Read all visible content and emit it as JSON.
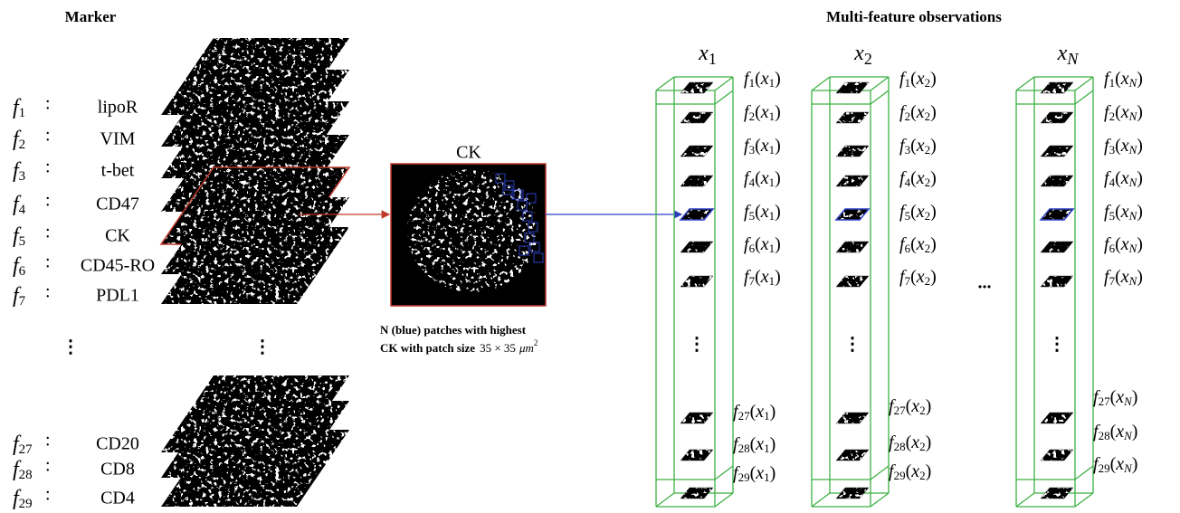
{
  "header": {
    "left_title": "Marker",
    "right_title": "Multi-feature observations"
  },
  "symbol": "f",
  "colon": ":",
  "open": "(",
  "close": ")",
  "markers": [
    {
      "index": "1",
      "name": "lipoR"
    },
    {
      "index": "2",
      "name": "VIM"
    },
    {
      "index": "3",
      "name": "t-bet"
    },
    {
      "index": "4",
      "name": "CD47"
    },
    {
      "index": "5",
      "name": "CK"
    },
    {
      "index": "6",
      "name": "CD45-RO"
    },
    {
      "index": "7",
      "name": "PDL1"
    },
    {
      "index": "27",
      "name": "CD20"
    },
    {
      "index": "28",
      "name": "CD8"
    },
    {
      "index": "29",
      "name": "CD4"
    }
  ],
  "vdots": "⋮",
  "hdots": "...",
  "ck_image": {
    "label": "CK",
    "caption": [
      "N (blue) patches with highest",
      "CK with patch size"
    ],
    "patch_size": "35 × 35",
    "unit": "μm",
    "unit_power": "2"
  },
  "columns": [
    {
      "var": "x",
      "sub": "1"
    },
    {
      "var": "x",
      "sub": "2"
    },
    {
      "var": "x",
      "sub": "N"
    }
  ]
}
